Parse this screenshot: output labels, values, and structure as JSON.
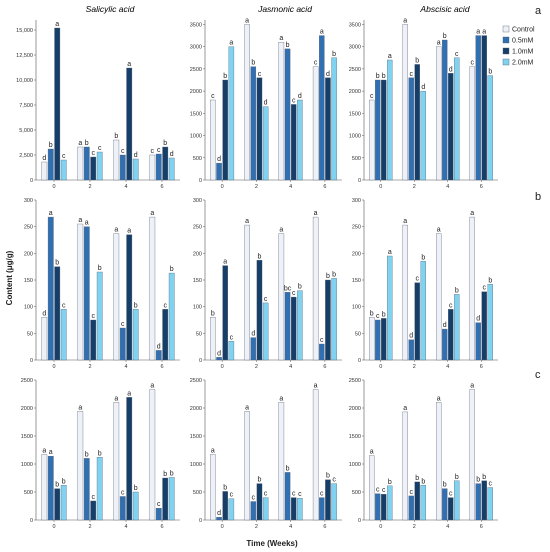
{
  "figure": {
    "ylabel": "Content (μg/g)",
    "xlabel": "Time (Weeks)",
    "row_labels": [
      "a",
      "b",
      "c"
    ],
    "column_titles": [
      "Salicylic acid",
      "Jasmonic acid",
      "Abscisic acid"
    ]
  },
  "legend": {
    "entries": [
      "Control",
      "0.5mM",
      "1.0mM",
      "2.0mM"
    ],
    "colors": [
      "#eef1f7",
      "#2f6fb2",
      "#153e69",
      "#7fd3f0"
    ]
  },
  "chart_data": [
    {
      "type": "bar",
      "row": 0,
      "col": 0,
      "title": "Salicylic acid",
      "categories": [
        "0",
        "2",
        "4",
        "6"
      ],
      "ylim": [
        0,
        16000
      ],
      "yticks": [
        0,
        2500,
        5000,
        7500,
        10000,
        12500,
        15000
      ],
      "ytick_labels": [
        "0",
        "2,500",
        "5,000",
        "7,500",
        "10,000",
        "12,500",
        "15,000"
      ],
      "series": [
        {
          "name": "Control",
          "values": [
            1800,
            3300,
            4000,
            2500
          ],
          "letters": [
            "d",
            "a",
            "b",
            "c"
          ]
        },
        {
          "name": "0.5mM",
          "values": [
            3100,
            3300,
            2500,
            2600
          ],
          "letters": [
            "b",
            "b",
            "c",
            "c"
          ]
        },
        {
          "name": "1.0mM",
          "values": [
            15200,
            2300,
            11200,
            3300
          ],
          "letters": [
            "a",
            "c",
            "a",
            "b"
          ]
        },
        {
          "name": "2.0mM",
          "values": [
            2000,
            2800,
            2100,
            2200
          ],
          "letters": [
            "c",
            "c",
            "d",
            "d"
          ]
        }
      ]
    },
    {
      "type": "bar",
      "row": 0,
      "col": 1,
      "title": "Jasmonic acid",
      "categories": [
        "0",
        "2",
        "4",
        "6"
      ],
      "ylim": [
        0,
        3600
      ],
      "yticks": [
        0,
        500,
        1000,
        1500,
        2000,
        2500,
        3000,
        3500
      ],
      "ytick_labels": [
        "0",
        "500",
        "1000",
        "1500",
        "2000",
        "2500",
        "3000",
        "3500"
      ],
      "series": [
        {
          "name": "Control",
          "values": [
            1800,
            3500,
            3100,
            2550
          ],
          "letters": [
            "c",
            "a",
            "a",
            "c"
          ]
        },
        {
          "name": "0.5mM",
          "values": [
            380,
            2550,
            2950,
            3250
          ],
          "letters": [
            "d",
            "b",
            "b",
            "a"
          ]
        },
        {
          "name": "1.0mM",
          "values": [
            2250,
            2300,
            1700,
            2300
          ],
          "letters": [
            "b",
            "c",
            "c",
            "d"
          ]
        },
        {
          "name": "2.0mM",
          "values": [
            3000,
            1650,
            1800,
            2750
          ],
          "letters": [
            "a",
            "d",
            "d",
            "b"
          ]
        }
      ]
    },
    {
      "type": "bar",
      "row": 0,
      "col": 2,
      "title": "Abscisic acid",
      "categories": [
        "0",
        "2",
        "4",
        "6"
      ],
      "ylim": [
        0,
        3600
      ],
      "yticks": [
        0,
        500,
        1000,
        1500,
        2000,
        2500,
        3000,
        3500
      ],
      "ytick_labels": [
        "0",
        "500",
        "1000",
        "1500",
        "2000",
        "2500",
        "3000",
        "3500"
      ],
      "series": [
        {
          "name": "Control",
          "values": [
            1800,
            3500,
            3000,
            2550
          ],
          "letters": [
            "c",
            "a",
            "a",
            "c"
          ]
        },
        {
          "name": "0.5mM",
          "values": [
            2250,
            2300,
            3150,
            3250
          ],
          "letters": [
            "b",
            "c",
            "b",
            "a"
          ]
        },
        {
          "name": "1.0mM",
          "values": [
            2250,
            2600,
            2400,
            3250
          ],
          "letters": [
            "b",
            "b",
            "d",
            "a"
          ]
        },
        {
          "name": "2.0mM",
          "values": [
            2700,
            2000,
            2750,
            2350
          ],
          "letters": [
            "a",
            "d",
            "c",
            "b"
          ]
        }
      ]
    },
    {
      "type": "bar",
      "row": 1,
      "col": 0,
      "title": "",
      "categories": [
        "0",
        "2",
        "4",
        "6"
      ],
      "ylim": [
        0,
        300
      ],
      "yticks": [
        0,
        50,
        100,
        150,
        200,
        250,
        300
      ],
      "ytick_labels": [
        "0",
        "50",
        "100",
        "150",
        "200",
        "250",
        "300"
      ],
      "series": [
        {
          "name": "Control",
          "values": [
            80,
            255,
            237,
            268
          ],
          "letters": [
            "d",
            "a",
            "a",
            "a"
          ]
        },
        {
          "name": "0.5mM",
          "values": [
            268,
            250,
            60,
            18
          ],
          "letters": [
            "a",
            "a",
            "c",
            "d"
          ]
        },
        {
          "name": "1.0mM",
          "values": [
            175,
            75,
            235,
            95
          ],
          "letters": [
            "b",
            "c",
            "a",
            "c"
          ]
        },
        {
          "name": "2.0mM",
          "values": [
            95,
            165,
            95,
            163
          ],
          "letters": [
            "c",
            "b",
            "b",
            "b"
          ]
        }
      ]
    },
    {
      "type": "bar",
      "row": 1,
      "col": 1,
      "title": "",
      "categories": [
        "0",
        "2",
        "4",
        "6"
      ],
      "ylim": [
        0,
        300
      ],
      "yticks": [
        0,
        50,
        100,
        150,
        200,
        250,
        300
      ],
      "ytick_labels": [
        "0",
        "50",
        "100",
        "150",
        "200",
        "250",
        "300"
      ],
      "series": [
        {
          "name": "Control",
          "values": [
            80,
            253,
            237,
            268
          ],
          "letters": [
            "b",
            "a",
            "a",
            "a"
          ]
        },
        {
          "name": "0.5mM",
          "values": [
            5,
            42,
            127,
            30
          ],
          "letters": [
            "d",
            "d",
            "bc",
            "c"
          ]
        },
        {
          "name": "1.0mM",
          "values": [
            177,
            187,
            118,
            150
          ],
          "letters": [
            "a",
            "b",
            "c",
            "b"
          ]
        },
        {
          "name": "2.0mM",
          "values": [
            35,
            107,
            130,
            153
          ],
          "letters": [
            "c",
            "c",
            "b",
            "b"
          ]
        }
      ]
    },
    {
      "type": "bar",
      "row": 1,
      "col": 2,
      "title": "",
      "categories": [
        "0",
        "2",
        "4",
        "6"
      ],
      "ylim": [
        0,
        300
      ],
      "yticks": [
        0,
        50,
        100,
        150,
        200,
        250,
        300
      ],
      "ytick_labels": [
        "0",
        "50",
        "100",
        "150",
        "200",
        "250",
        "300"
      ],
      "series": [
        {
          "name": "Control",
          "values": [
            80,
            253,
            237,
            268
          ],
          "letters": [
            "b",
            "a",
            "a",
            "a"
          ]
        },
        {
          "name": "0.5mM",
          "values": [
            75,
            38,
            58,
            70
          ],
          "letters": [
            "c",
            "d",
            "d",
            "d"
          ]
        },
        {
          "name": "1.0mM",
          "values": [
            78,
            145,
            95,
            128
          ],
          "letters": [
            "b",
            "c",
            "c",
            "c"
          ]
        },
        {
          "name": "2.0mM",
          "values": [
            195,
            185,
            123,
            142
          ],
          "letters": [
            "a",
            "b",
            "b",
            "b"
          ]
        }
      ]
    },
    {
      "type": "bar",
      "row": 2,
      "col": 0,
      "title": "",
      "categories": [
        "0",
        "2",
        "4",
        "6"
      ],
      "ylim": [
        0,
        2500
      ],
      "yticks": [
        0,
        500,
        1000,
        1500,
        2000,
        2500
      ],
      "ytick_labels": [
        "0",
        "500",
        "1000",
        "1500",
        "2000",
        "2500"
      ],
      "series": [
        {
          "name": "Control",
          "values": [
            1170,
            1940,
            2100,
            2330
          ],
          "letters": [
            "a",
            "a",
            "a",
            "a"
          ]
        },
        {
          "name": "0.5mM",
          "values": [
            1140,
            1100,
            420,
            210
          ],
          "letters": [
            "a",
            "b",
            "c",
            "c"
          ]
        },
        {
          "name": "1.0mM",
          "values": [
            560,
            340,
            2190,
            750
          ],
          "letters": [
            "b",
            "c",
            "a",
            "b"
          ]
        },
        {
          "name": "2.0mM",
          "values": [
            620,
            1120,
            500,
            760
          ],
          "letters": [
            "b",
            "b",
            "b",
            "b"
          ]
        }
      ]
    },
    {
      "type": "bar",
      "row": 2,
      "col": 1,
      "title": "",
      "categories": [
        "0",
        "2",
        "4",
        "6"
      ],
      "ylim": [
        0,
        2500
      ],
      "yticks": [
        0,
        500,
        1000,
        1500,
        2000,
        2500
      ],
      "ytick_labels": [
        "0",
        "500",
        "1000",
        "1500",
        "2000",
        "2500"
      ],
      "series": [
        {
          "name": "Control",
          "values": [
            1170,
            1940,
            2100,
            2330
          ],
          "letters": [
            "a",
            "a",
            "a",
            "a"
          ]
        },
        {
          "name": "0.5mM",
          "values": [
            50,
            330,
            850,
            400
          ],
          "letters": [
            "d",
            "c",
            "b",
            "c"
          ]
        },
        {
          "name": "1.0mM",
          "values": [
            510,
            650,
            400,
            720
          ],
          "letters": [
            "b",
            "b",
            "c",
            "b"
          ]
        },
        {
          "name": "2.0mM",
          "values": [
            380,
            400,
            390,
            650
          ],
          "letters": [
            "c",
            "c",
            "c",
            "c"
          ]
        }
      ]
    },
    {
      "type": "bar",
      "row": 2,
      "col": 2,
      "title": "",
      "categories": [
        "0",
        "2",
        "4",
        "6"
      ],
      "ylim": [
        0,
        2500
      ],
      "yticks": [
        0,
        500,
        1000,
        1500,
        2000,
        2500
      ],
      "ytick_labels": [
        "0",
        "500",
        "1000",
        "1500",
        "2000",
        "2500"
      ],
      "series": [
        {
          "name": "Control",
          "values": [
            1150,
            1930,
            2100,
            2330
          ],
          "letters": [
            "a",
            "a",
            "a",
            "a"
          ]
        },
        {
          "name": "0.5mM",
          "values": [
            470,
            430,
            560,
            650
          ],
          "letters": [
            "c",
            "c",
            "b",
            "b"
          ]
        },
        {
          "name": "1.0mM",
          "values": [
            460,
            680,
            400,
            700
          ],
          "letters": [
            "c",
            "b",
            "c",
            "b"
          ]
        },
        {
          "name": "2.0mM",
          "values": [
            610,
            620,
            700,
            580
          ],
          "letters": [
            "b",
            "b",
            "b",
            "c"
          ]
        }
      ]
    }
  ]
}
